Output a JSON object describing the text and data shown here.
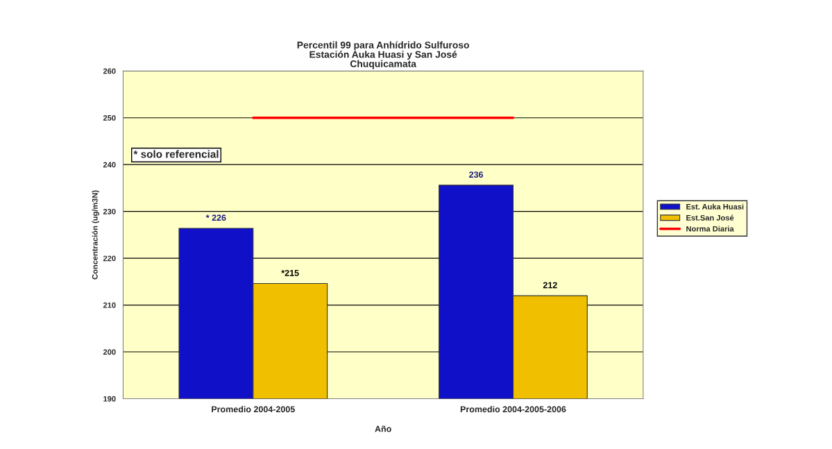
{
  "chart_data": {
    "type": "bar",
    "title": "Percentil 99 para Anhídrido Sulfuroso\nEstación Auka Huasi y San José\nChuquicamata",
    "xlabel": "Año",
    "ylabel": "Concentración (ug/m3N)",
    "categories": [
      "Promedio 2004-2005",
      "Promedio 2004-2005-2006"
    ],
    "series": [
      {
        "name": "Est. Auka Huasi",
        "color": "#1010c8",
        "values": [
          226.4,
          235.6
        ],
        "value_labels": [
          "* 226",
          "236"
        ]
      },
      {
        "name": "Est.San José",
        "color": "#f0c000",
        "values": [
          214.6,
          212.0
        ],
        "value_labels": [
          "*215",
          "212"
        ]
      },
      {
        "name": "Norma Diaria",
        "type": "line",
        "color": "#ff0000",
        "values": [
          250,
          250
        ]
      }
    ],
    "ylim": [
      190,
      260
    ],
    "yticks": [
      190,
      200,
      210,
      220,
      230,
      240,
      250,
      260
    ],
    "grid": "y",
    "legend": "right",
    "annotations": [
      "* solo referencial"
    ]
  }
}
